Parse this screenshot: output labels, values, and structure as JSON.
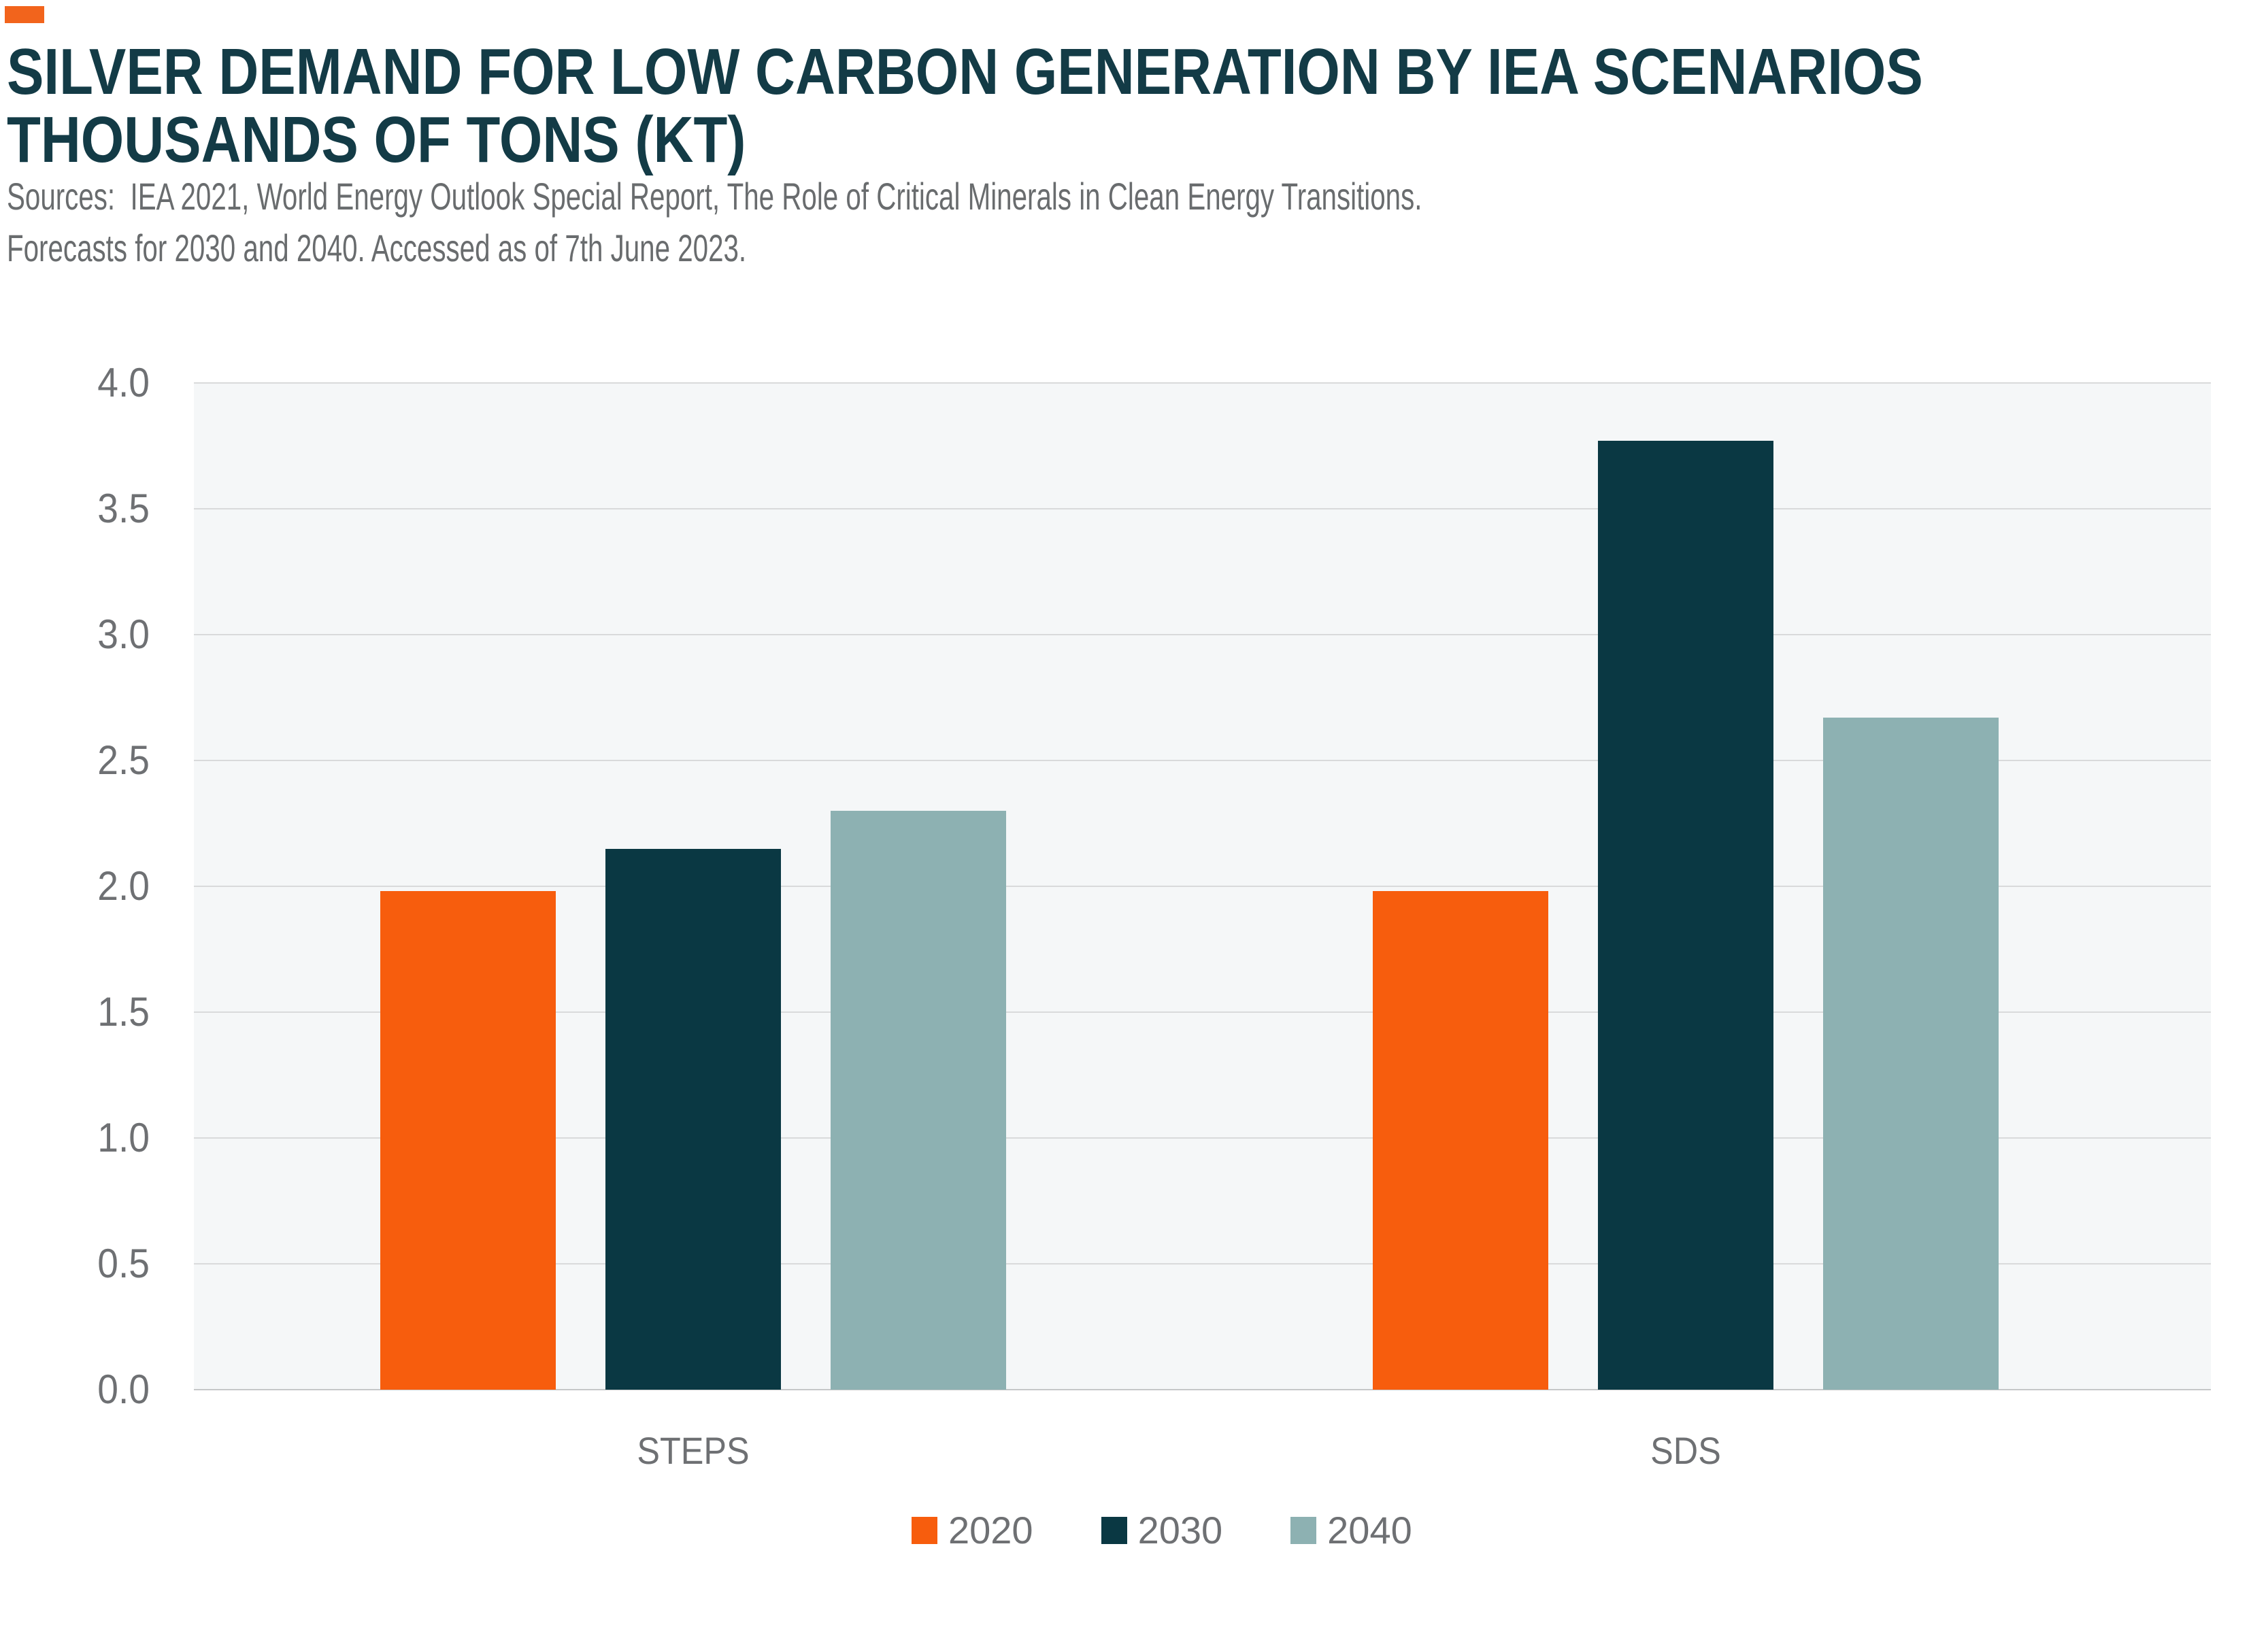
{
  "brand": {
    "mark_color": "#F2641C"
  },
  "title": {
    "line1": "SILVER DEMAND FOR LOW CARBON GENERATION BY IEA SCENARIOS",
    "line2": "THOUSANDS OF TONS (KT)",
    "color": "#133B46"
  },
  "source": {
    "line1": "Sources:  IEA 2021, World Energy Outlook Special Report, The Role of Critical Minerals in Clean Energy Transitions.",
    "line2": "Forecasts for 2030 and 2040. Accessed as of 7th June 2023."
  },
  "chart_data": {
    "type": "bar",
    "categories": [
      "STEPS",
      "SDS"
    ],
    "series": [
      {
        "name": "2020",
        "color": "#F75D0D",
        "values": [
          1.98,
          1.98
        ]
      },
      {
        "name": "2030",
        "color": "#0A3843",
        "values": [
          2.15,
          3.77
        ]
      },
      {
        "name": "2040",
        "color": "#8DB1B2",
        "values": [
          2.3,
          2.67
        ]
      }
    ],
    "title": "Silver demand for low carbon generation by IEA scenarios (kt)",
    "xlabel": "",
    "ylabel": "",
    "ylim": [
      0.0,
      4.0
    ],
    "ytick_step": 0.5,
    "yticks": [
      "4.0",
      "3.5",
      "3.0",
      "2.5",
      "2.0",
      "1.5",
      "1.0",
      "0.5",
      "0.0"
    ],
    "grid": true,
    "legend_position": "bottom",
    "colors": {
      "plot_background": "#F5F7F8",
      "gridline": "#D9DADB",
      "zero_line": "#C5C7C8",
      "tick_label": "#6E7073"
    }
  }
}
